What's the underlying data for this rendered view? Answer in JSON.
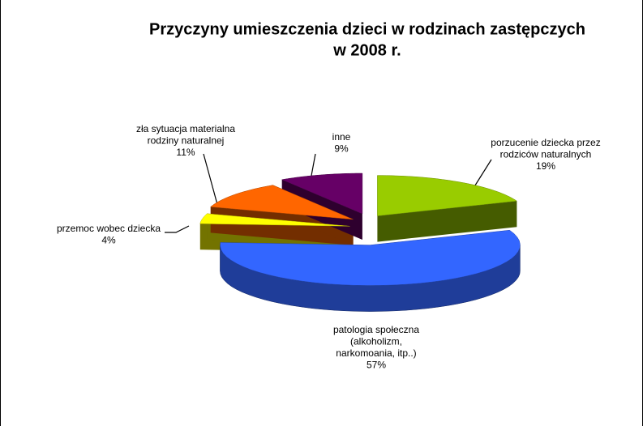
{
  "chart_data": {
    "type": "pie3d",
    "title": [
      "Przyczyny umieszczenia dzieci w rodzinach zastępczych",
      "w 2008 r."
    ],
    "categories": [
      [
        "porzucenie dziecka przez",
        "rodziców naturalnych"
      ],
      [
        "patologia społeczna",
        "(alkoholizm,",
        "narkomoania, itp..)"
      ],
      [
        "przemoc wobec dziecka"
      ],
      [
        "zła sytuacja materialna",
        "rodziny naturalnej"
      ],
      [
        "inne"
      ]
    ],
    "values": [
      19,
      57,
      4,
      11,
      9
    ],
    "value_labels": [
      "19%",
      "57%",
      "4%",
      "11%",
      "9%"
    ],
    "colors": [
      "#99cc00",
      "#3366ff",
      "#ffff00",
      "#ff6600",
      "#660066"
    ]
  }
}
